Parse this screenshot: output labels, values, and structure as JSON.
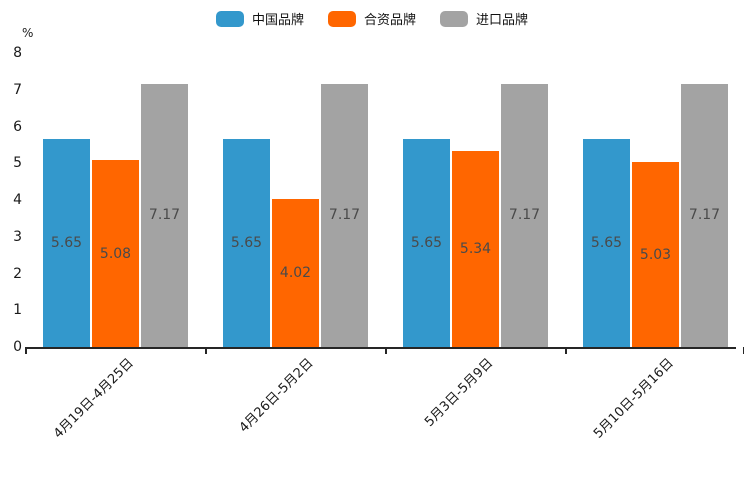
{
  "chart_data": {
    "type": "bar",
    "title": "",
    "unit_label": "%",
    "categories": [
      "4月19日-4月25日",
      "4月26日-5月2日",
      "5月3日-5月9日",
      "5月10日-5月16日"
    ],
    "series": [
      {
        "name": "中国品牌",
        "color": "#3398CC",
        "values": [
          5.65,
          5.65,
          5.65,
          5.65
        ]
      },
      {
        "name": "合资品牌",
        "color": "#FF6600",
        "values": [
          5.08,
          4.02,
          5.34,
          5.03
        ]
      },
      {
        "name": "进口品牌",
        "color": "#A3A3A3",
        "values": [
          7.17,
          7.17,
          7.17,
          7.17
        ]
      }
    ],
    "ylim": [
      0,
      8
    ],
    "yticks": [
      0,
      1,
      2,
      3,
      4,
      5,
      6,
      7,
      8
    ],
    "value_labels": true,
    "value_label_color": "#4a4a4a",
    "legend_position": "top-center",
    "grid": false,
    "axis_color": "#262626"
  }
}
